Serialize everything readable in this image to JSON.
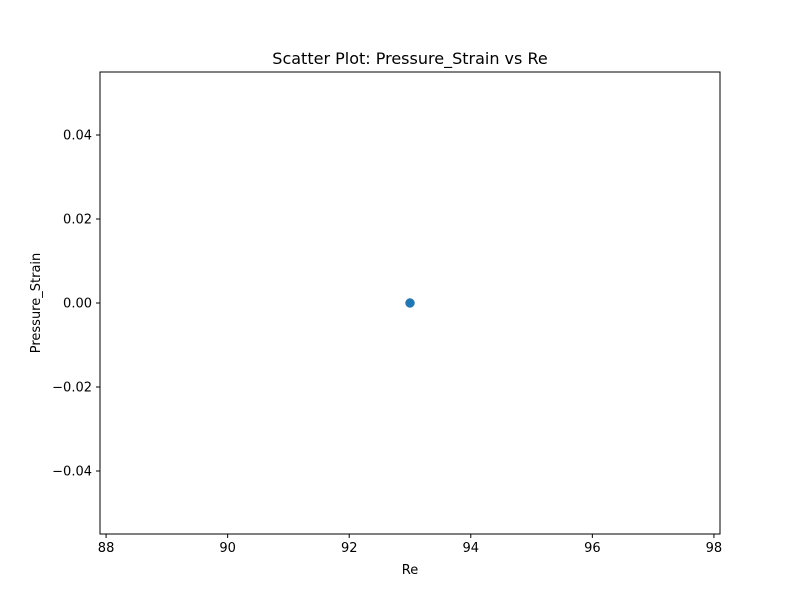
{
  "chart_data": {
    "type": "scatter",
    "title": "Scatter Plot: Pressure_Strain vs Re",
    "xlabel": "Re",
    "ylabel": "Pressure_Strain",
    "xlim": [
      87.9,
      98.1
    ],
    "ylim": [
      -0.055,
      0.055
    ],
    "x_ticks": [
      88,
      90,
      92,
      94,
      96,
      98
    ],
    "x_tick_labels": [
      "88",
      "90",
      "92",
      "94",
      "96",
      "98"
    ],
    "y_ticks": [
      -0.04,
      -0.02,
      0.0,
      0.02,
      0.04
    ],
    "y_tick_labels": [
      "−0.04",
      "−0.02",
      "0.00",
      "0.02",
      "0.04"
    ],
    "grid": false,
    "legend": false,
    "marker_color": "#1f77b4",
    "points": [
      {
        "x": 93,
        "y": 0.0
      }
    ]
  }
}
